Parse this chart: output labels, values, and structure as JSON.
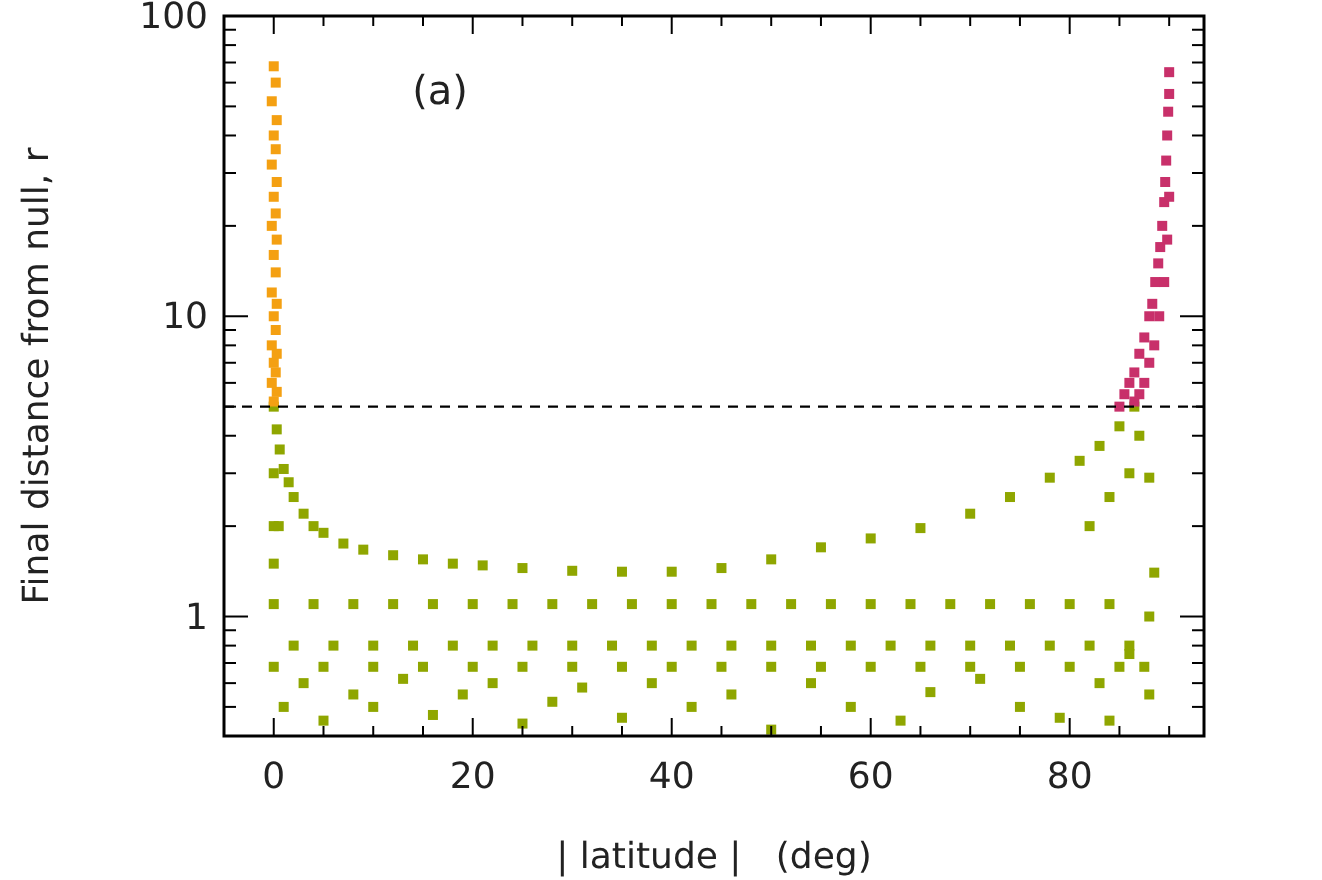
{
  "chart_data": {
    "type": "scatter",
    "xlabel": "| latitude |   (deg)",
    "ylabel": "Final distance from null, r",
    "annotations": [
      "(a)"
    ],
    "log": "y",
    "grid": false,
    "marker": "square",
    "xlim": [
      -5,
      93.5
    ],
    "ylim": [
      0.4,
      100
    ],
    "xticks": [
      0,
      {
        "value": 5,
        "label": null
      },
      {
        "value": 10,
        "label": null
      },
      {
        "value": 15,
        "label": null
      },
      20,
      {
        "value": 25,
        "label": null
      },
      {
        "value": 30,
        "label": null
      },
      {
        "value": 35,
        "label": null
      },
      40,
      {
        "value": 45,
        "label": null
      },
      {
        "value": 50,
        "label": null
      },
      {
        "value": 55,
        "label": null
      },
      60,
      {
        "value": 65,
        "label": null
      },
      {
        "value": 70,
        "label": null
      },
      {
        "value": 75,
        "label": null
      },
      80,
      {
        "value": 85,
        "label": null
      },
      {
        "value": 90,
        "label": null
      }
    ],
    "yticks": [
      {
        "value": 0.4,
        "label": null
      },
      {
        "value": 0.5,
        "label": null
      },
      {
        "value": 0.6,
        "label": null
      },
      {
        "value": 0.7,
        "label": null
      },
      {
        "value": 0.8,
        "label": null
      },
      {
        "value": 0.9,
        "label": null
      },
      1,
      {
        "value": 2,
        "label": null
      },
      {
        "value": 3,
        "label": null
      },
      {
        "value": 4,
        "label": null
      },
      {
        "value": 5,
        "label": null
      },
      {
        "value": 6,
        "label": null
      },
      {
        "value": 7,
        "label": null
      },
      {
        "value": 8,
        "label": null
      },
      {
        "value": 9,
        "label": null
      },
      10,
      {
        "value": 20,
        "label": null
      },
      {
        "value": 30,
        "label": null
      },
      {
        "value": 40,
        "label": null
      },
      {
        "value": 50,
        "label": null
      },
      {
        "value": 60,
        "label": null
      },
      {
        "value": 70,
        "label": null
      },
      {
        "value": 80,
        "label": null
      },
      {
        "value": 90,
        "label": null
      },
      100
    ],
    "ref_lines": [
      {
        "axis": "y",
        "value": 5,
        "line_style": "dashed",
        "color": "#000000"
      }
    ],
    "series": [
      {
        "color": "#8fa600",
        "x": [
          0,
          0.3,
          0.6,
          1,
          1.5,
          2,
          3,
          4,
          5,
          7,
          9,
          12,
          15,
          18,
          21,
          25,
          30,
          35,
          40,
          45,
          50,
          55,
          60,
          65,
          70,
          74,
          78,
          81,
          83,
          85,
          86.5,
          0,
          0,
          0,
          0.5,
          86,
          84,
          82,
          88,
          88.5,
          87.5,
          87,
          0,
          4,
          8,
          12,
          16,
          20,
          24,
          28,
          32,
          36,
          40,
          44,
          48,
          52,
          56,
          60,
          64,
          68,
          72,
          76,
          80,
          84,
          2,
          6,
          10,
          14,
          18,
          22,
          26,
          30,
          34,
          38,
          42,
          46,
          50,
          54,
          58,
          62,
          66,
          70,
          74,
          78,
          82,
          86,
          0,
          5,
          10,
          15,
          20,
          25,
          30,
          35,
          40,
          45,
          50,
          55,
          60,
          65,
          70,
          75,
          80,
          85,
          1,
          3,
          5,
          8,
          10,
          13,
          16,
          19,
          22,
          25,
          28,
          31,
          35,
          38,
          42,
          46,
          50,
          54,
          58,
          63,
          66,
          71,
          75,
          79,
          83,
          86,
          88,
          88,
          84
        ],
        "values": [
          5,
          4.2,
          3.6,
          3.1,
          2.8,
          2.5,
          2.2,
          2,
          1.9,
          1.75,
          1.67,
          1.6,
          1.55,
          1.5,
          1.48,
          1.45,
          1.42,
          1.41,
          1.41,
          1.45,
          1.55,
          1.7,
          1.82,
          1.97,
          2.2,
          2.5,
          2.9,
          3.3,
          3.7,
          4.3,
          5,
          3,
          2,
          1.5,
          2,
          3,
          2.5,
          2,
          2.9,
          1.4,
          0.68,
          4,
          1.1,
          1.1,
          1.1,
          1.1,
          1.1,
          1.1,
          1.1,
          1.1,
          1.1,
          1.1,
          1.1,
          1.1,
          1.1,
          1.1,
          1.1,
          1.1,
          1.1,
          1.1,
          1.1,
          1.1,
          1.1,
          1.1,
          0.8,
          0.8,
          0.8,
          0.8,
          0.8,
          0.8,
          0.8,
          0.8,
          0.8,
          0.8,
          0.8,
          0.8,
          0.8,
          0.8,
          0.8,
          0.8,
          0.8,
          0.8,
          0.8,
          0.8,
          0.8,
          0.8,
          0.68,
          0.68,
          0.68,
          0.68,
          0.68,
          0.68,
          0.68,
          0.68,
          0.68,
          0.68,
          0.68,
          0.68,
          0.68,
          0.68,
          0.68,
          0.68,
          0.68,
          0.68,
          0.5,
          0.6,
          0.45,
          0.55,
          0.5,
          0.62,
          0.47,
          0.55,
          0.6,
          0.44,
          0.52,
          0.58,
          0.46,
          0.6,
          0.5,
          0.55,
          0.42,
          0.6,
          0.5,
          0.45,
          0.56,
          0.62,
          0.5,
          0.46,
          0.6,
          0.75,
          1,
          0.55,
          0.45
        ]
      },
      {
        "color": "#f4a012",
        "x": [
          0,
          0.3,
          -0.2,
          0.2,
          0,
          0.3,
          -0.2,
          0.2,
          0,
          0.3,
          -0.2,
          0.2,
          0,
          0.3,
          -0.2,
          0.2,
          0,
          0.3,
          -0.2,
          0.2,
          0,
          0.3,
          -0.2,
          0.2,
          0
        ],
        "values": [
          5.2,
          5.6,
          6,
          6.5,
          7,
          7.5,
          8,
          9,
          10,
          11,
          12,
          14,
          16,
          18,
          20,
          22,
          25,
          28,
          32,
          36,
          40,
          45,
          52,
          60,
          68
        ]
      },
      {
        "color": "#c8306a",
        "x": [
          85,
          85.5,
          86,
          86.5,
          87,
          87.5,
          88,
          88.3,
          88.6,
          88.9,
          89.1,
          89.3,
          89.5,
          89.6,
          89.7,
          89.8,
          89.9,
          90,
          90,
          86.5,
          87,
          87.5,
          88,
          88.5,
          89,
          89.5,
          89.8,
          90
        ],
        "values": [
          5,
          5.5,
          6,
          6.5,
          7.5,
          8.5,
          10,
          11,
          13,
          15,
          17,
          20,
          24,
          28,
          33,
          40,
          48,
          55,
          65,
          5.2,
          5.5,
          6,
          7,
          8,
          10,
          13,
          18,
          25
        ]
      }
    ]
  }
}
